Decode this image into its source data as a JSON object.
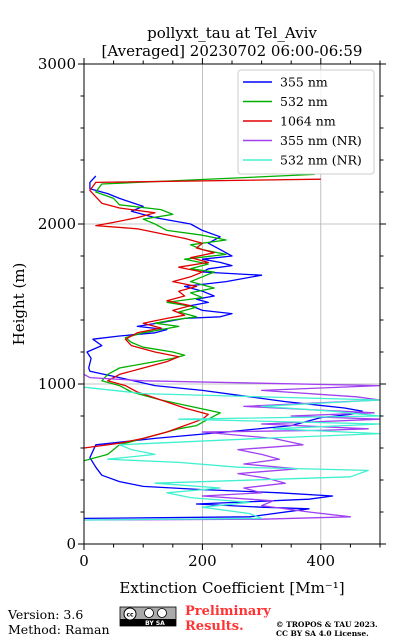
{
  "chart_data": {
    "type": "line",
    "title_line1": "pollyxt_tau at Tel_Aviv",
    "title_line2": "[Averaged] 20230702 06:00-06:59",
    "xlabel": "Extinction Coefficient [Mm⁻¹]",
    "ylabel": "Height (m)",
    "xlim": [
      0,
      500
    ],
    "ylim": [
      0,
      3000
    ],
    "x_ticks": [
      0,
      200,
      400
    ],
    "y_ticks": [
      0,
      1000,
      2000,
      3000
    ],
    "grid": true,
    "legend_position": "top-right",
    "series": [
      {
        "name": "355 nm",
        "color": "#0000ff",
        "points": [
          [
            0,
            160
          ],
          [
            280,
            170
          ],
          [
            380,
            220
          ],
          [
            300,
            230
          ],
          [
            190,
            250
          ],
          [
            380,
            280
          ],
          [
            420,
            300
          ],
          [
            330,
            320
          ],
          [
            200,
            340
          ],
          [
            100,
            360
          ],
          [
            60,
            390
          ],
          [
            30,
            430
          ],
          [
            20,
            480
          ],
          [
            10,
            540
          ],
          [
            20,
            620
          ],
          [
            120,
            660
          ],
          [
            240,
            700
          ],
          [
            350,
            740
          ],
          [
            400,
            790
          ],
          [
            450,
            810
          ],
          [
            470,
            830
          ],
          [
            440,
            850
          ],
          [
            390,
            870
          ],
          [
            340,
            890
          ],
          [
            280,
            920
          ],
          [
            200,
            960
          ],
          [
            120,
            990
          ],
          [
            60,
            1040
          ],
          [
            10,
            1080
          ],
          [
            8,
            1100
          ],
          [
            12,
            1160
          ],
          [
            5,
            1200
          ],
          [
            30,
            1240
          ],
          [
            15,
            1280
          ],
          [
            60,
            1300
          ],
          [
            120,
            1320
          ],
          [
            140,
            1340
          ],
          [
            90,
            1360
          ],
          [
            140,
            1390
          ],
          [
            170,
            1410
          ],
          [
            230,
            1420
          ],
          [
            250,
            1440
          ],
          [
            200,
            1460
          ],
          [
            180,
            1490
          ],
          [
            210,
            1510
          ],
          [
            190,
            1530
          ],
          [
            220,
            1550
          ],
          [
            200,
            1580
          ],
          [
            170,
            1610
          ],
          [
            240,
            1640
          ],
          [
            300,
            1680
          ],
          [
            200,
            1700
          ],
          [
            210,
            1720
          ],
          [
            250,
            1740
          ],
          [
            230,
            1760
          ],
          [
            200,
            1780
          ],
          [
            250,
            1800
          ],
          [
            230,
            1840
          ],
          [
            210,
            1880
          ],
          [
            230,
            1920
          ],
          [
            200,
            1960
          ],
          [
            180,
            2000
          ],
          [
            120,
            2040
          ],
          [
            80,
            2080
          ],
          [
            100,
            2110
          ],
          [
            60,
            2160
          ],
          [
            40,
            2190
          ],
          [
            10,
            2220
          ],
          [
            10,
            2260
          ],
          [
            20,
            2300
          ]
        ]
      },
      {
        "name": "532 nm",
        "color": "#00b000",
        "points": [
          [
            0,
            520
          ],
          [
            40,
            560
          ],
          [
            60,
            620
          ],
          [
            120,
            680
          ],
          [
            160,
            720
          ],
          [
            190,
            740
          ],
          [
            230,
            820
          ],
          [
            180,
            860
          ],
          [
            130,
            900
          ],
          [
            80,
            950
          ],
          [
            60,
            990
          ],
          [
            30,
            1020
          ],
          [
            40,
            1060
          ],
          [
            60,
            1100
          ],
          [
            120,
            1140
          ],
          [
            150,
            1160
          ],
          [
            170,
            1180
          ],
          [
            150,
            1200
          ],
          [
            100,
            1230
          ],
          [
            80,
            1260
          ],
          [
            70,
            1290
          ],
          [
            100,
            1320
          ],
          [
            130,
            1340
          ],
          [
            160,
            1360
          ],
          [
            120,
            1380
          ],
          [
            150,
            1400
          ],
          [
            190,
            1420
          ],
          [
            160,
            1450
          ],
          [
            190,
            1480
          ],
          [
            140,
            1510
          ],
          [
            200,
            1540
          ],
          [
            180,
            1570
          ],
          [
            220,
            1600
          ],
          [
            180,
            1640
          ],
          [
            200,
            1670
          ],
          [
            220,
            1700
          ],
          [
            180,
            1720
          ],
          [
            210,
            1750
          ],
          [
            170,
            1780
          ],
          [
            240,
            1810
          ],
          [
            200,
            1840
          ],
          [
            180,
            1870
          ],
          [
            240,
            1900
          ],
          [
            200,
            1930
          ],
          [
            140,
            1960
          ],
          [
            120,
            2000
          ],
          [
            100,
            2030
          ],
          [
            150,
            2060
          ],
          [
            130,
            2090
          ],
          [
            60,
            2120
          ],
          [
            50,
            2160
          ],
          [
            20,
            2200
          ],
          [
            30,
            2250
          ],
          [
            270,
            2290
          ],
          [
            390,
            2310
          ]
        ]
      },
      {
        "name": "1064 nm",
        "color": "#e00000",
        "points": [
          [
            0,
            600
          ],
          [
            60,
            630
          ],
          [
            100,
            660
          ],
          [
            140,
            700
          ],
          [
            170,
            740
          ],
          [
            200,
            780
          ],
          [
            210,
            810
          ],
          [
            170,
            850
          ],
          [
            130,
            900
          ],
          [
            90,
            950
          ],
          [
            70,
            990
          ],
          [
            40,
            1020
          ],
          [
            60,
            1060
          ],
          [
            100,
            1100
          ],
          [
            140,
            1140
          ],
          [
            160,
            1170
          ],
          [
            120,
            1200
          ],
          [
            80,
            1240
          ],
          [
            70,
            1280
          ],
          [
            90,
            1320
          ],
          [
            130,
            1350
          ],
          [
            100,
            1380
          ],
          [
            140,
            1410
          ],
          [
            170,
            1430
          ],
          [
            150,
            1460
          ],
          [
            180,
            1490
          ],
          [
            140,
            1520
          ],
          [
            170,
            1550
          ],
          [
            160,
            1580
          ],
          [
            190,
            1610
          ],
          [
            150,
            1640
          ],
          [
            180,
            1670
          ],
          [
            200,
            1700
          ],
          [
            160,
            1730
          ],
          [
            210,
            1760
          ],
          [
            180,
            1790
          ],
          [
            220,
            1820
          ],
          [
            190,
            1850
          ],
          [
            200,
            1880
          ],
          [
            170,
            1910
          ],
          [
            130,
            1940
          ],
          [
            90,
            1970
          ],
          [
            20,
            1990
          ],
          [
            50,
            2010
          ],
          [
            90,
            2040
          ],
          [
            120,
            2070
          ],
          [
            60,
            2100
          ],
          [
            30,
            2130
          ],
          [
            20,
            2170
          ],
          [
            10,
            2210
          ],
          [
            20,
            2260
          ],
          [
            400,
            2280
          ]
        ]
      },
      {
        "name": "355 nm (NR)",
        "color": "#a040f0",
        "points": [
          [
            0,
            150
          ],
          [
            300,
            155
          ],
          [
            450,
            170
          ],
          [
            380,
            200
          ],
          [
            300,
            240
          ],
          [
            320,
            270
          ],
          [
            200,
            300
          ],
          [
            300,
            320
          ],
          [
            270,
            350
          ],
          [
            340,
            380
          ],
          [
            310,
            410
          ],
          [
            260,
            440
          ],
          [
            360,
            470
          ],
          [
            270,
            500
          ],
          [
            330,
            530
          ],
          [
            300,
            560
          ],
          [
            260,
            590
          ],
          [
            370,
            620
          ],
          [
            320,
            660
          ],
          [
            200,
            700
          ],
          [
            400,
            710
          ],
          [
            480,
            720
          ],
          [
            300,
            750
          ],
          [
            500,
            780
          ],
          [
            350,
            800
          ],
          [
            490,
            820
          ],
          [
            270,
            860
          ],
          [
            500,
            900
          ],
          [
            460,
            920
          ],
          [
            300,
            960
          ],
          [
            500,
            990
          ],
          [
            100,
            1020
          ],
          [
            10,
            1040
          ],
          [
            0,
            1060
          ]
        ]
      },
      {
        "name": "532 nm (NR)",
        "color": "#40f0d0",
        "points": [
          [
            0,
            150
          ],
          [
            300,
            160
          ],
          [
            280,
            190
          ],
          [
            200,
            230
          ],
          [
            280,
            260
          ],
          [
            180,
            290
          ],
          [
            140,
            320
          ],
          [
            230,
            350
          ],
          [
            120,
            380
          ],
          [
            450,
            420
          ],
          [
            480,
            460
          ],
          [
            260,
            480
          ],
          [
            160,
            510
          ],
          [
            40,
            530
          ],
          [
            120,
            560
          ],
          [
            80,
            590
          ],
          [
            60,
            620
          ],
          [
            300,
            660
          ],
          [
            500,
            690
          ],
          [
            320,
            720
          ],
          [
            500,
            750
          ],
          [
            160,
            780
          ],
          [
            500,
            800
          ],
          [
            420,
            830
          ],
          [
            300,
            860
          ],
          [
            500,
            900
          ],
          [
            100,
            940
          ],
          [
            0,
            980
          ]
        ]
      }
    ]
  },
  "footer": {
    "version": "Version: 3.6",
    "method": "Method: Raman",
    "preliminary_line1": "Preliminary",
    "preliminary_line2": "Results.",
    "copyright_line1": "© TROPOS & TAU 2023.",
    "copyright_line2": "CC BY SA 4.0 License."
  },
  "license_badge": {
    "text": "BY  SA"
  }
}
